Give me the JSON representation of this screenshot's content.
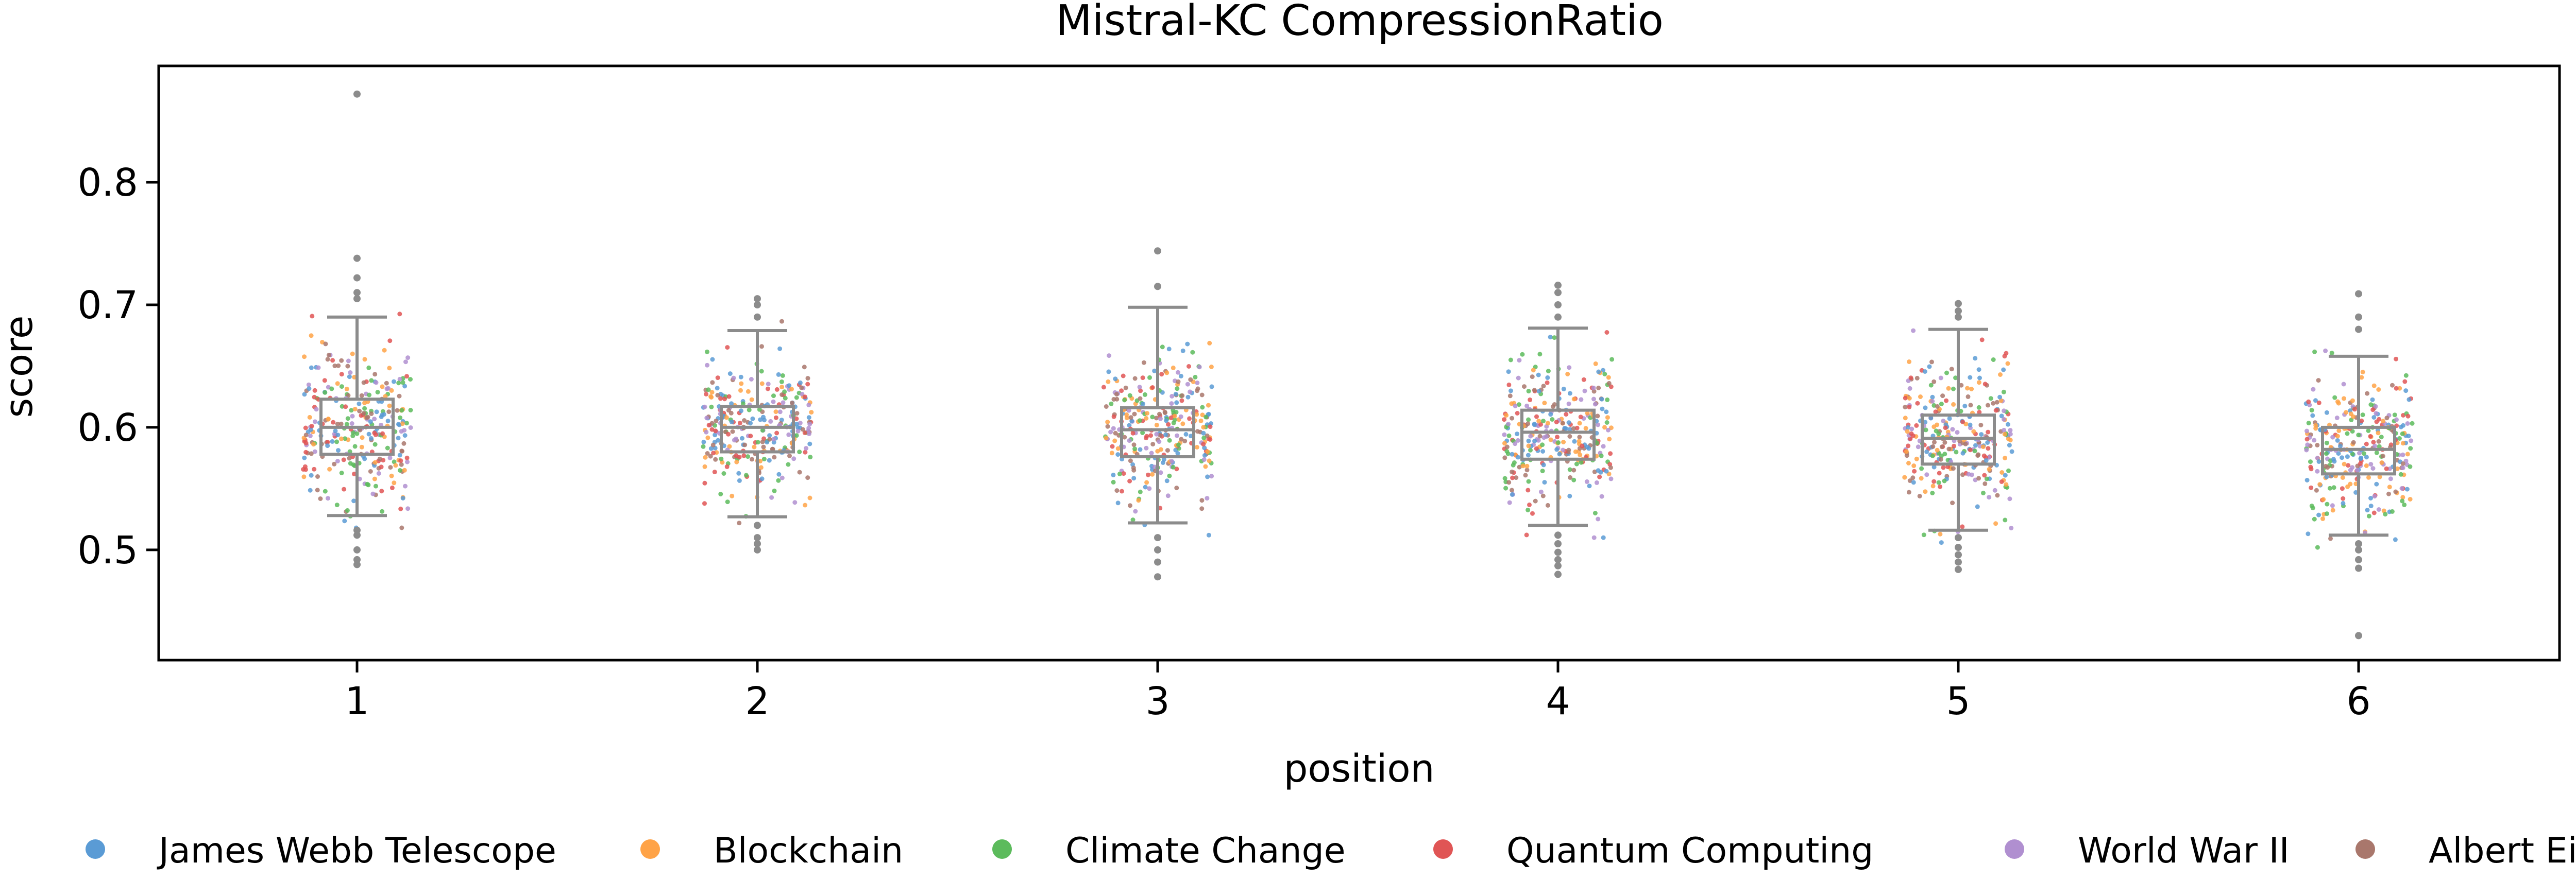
{
  "chart_data": {
    "type": "box",
    "title": "Mistral-KC CompressionRatio",
    "xlabel": "position",
    "ylabel": "score",
    "categories": [
      "1",
      "2",
      "3",
      "4",
      "5",
      "6"
    ],
    "ylim": [
      0.41,
      0.895
    ],
    "yticks": [
      0.5,
      0.6,
      0.7,
      0.8
    ],
    "ytick_labels": [
      "0.5",
      "0.6",
      "0.7",
      "0.8"
    ],
    "grid": false,
    "legend_position": "bottom",
    "series": [
      {
        "name": "James Webb Telescope",
        "color": "#5a9bd5"
      },
      {
        "name": "Blockchain",
        "color": "#ffa347"
      },
      {
        "name": "Climate Change",
        "color": "#5cbb5c"
      },
      {
        "name": "Quantum Computing",
        "color": "#e05555"
      },
      {
        "name": "World War II",
        "color": "#b08fd0"
      },
      {
        "name": "Albert Einstein",
        "color": "#a9776c"
      }
    ],
    "boxes": [
      {
        "position": "1",
        "whisker_low": 0.528,
        "q1": 0.578,
        "median": 0.6,
        "q3": 0.623,
        "whisker_high": 0.69,
        "outliers": [
          0.872,
          0.738,
          0.722,
          0.71,
          0.705,
          0.516,
          0.512,
          0.5,
          0.492,
          0.488
        ]
      },
      {
        "position": "2",
        "whisker_low": 0.527,
        "q1": 0.58,
        "median": 0.6,
        "q3": 0.617,
        "whisker_high": 0.679,
        "outliers": [
          0.705,
          0.7,
          0.69,
          0.52,
          0.51,
          0.505,
          0.5
        ]
      },
      {
        "position": "3",
        "whisker_low": 0.522,
        "q1": 0.576,
        "median": 0.598,
        "q3": 0.616,
        "whisker_high": 0.698,
        "outliers": [
          0.744,
          0.715,
          0.51,
          0.5,
          0.49,
          0.478
        ]
      },
      {
        "position": "4",
        "whisker_low": 0.52,
        "q1": 0.574,
        "median": 0.596,
        "q3": 0.614,
        "whisker_high": 0.681,
        "outliers": [
          0.716,
          0.71,
          0.7,
          0.69,
          0.512,
          0.505,
          0.498,
          0.492,
          0.487,
          0.48
        ]
      },
      {
        "position": "5",
        "whisker_low": 0.516,
        "q1": 0.57,
        "median": 0.591,
        "q3": 0.61,
        "whisker_high": 0.68,
        "outliers": [
          0.701,
          0.695,
          0.69,
          0.51,
          0.502,
          0.496,
          0.49,
          0.484
        ]
      },
      {
        "position": "6",
        "whisker_low": 0.512,
        "q1": 0.562,
        "median": 0.582,
        "q3": 0.6,
        "whisker_high": 0.658,
        "outliers": [
          0.709,
          0.69,
          0.68,
          0.505,
          0.5,
          0.492,
          0.485,
          0.43
        ]
      }
    ],
    "points_per_position": 300,
    "box_color": "#8c8c8c",
    "outlier_color": "#8c8c8c"
  }
}
